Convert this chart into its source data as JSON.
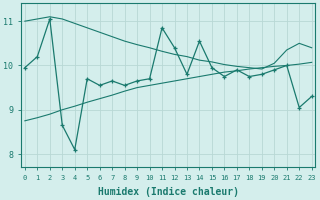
{
  "x": [
    0,
    1,
    2,
    3,
    4,
    5,
    6,
    7,
    8,
    9,
    10,
    11,
    12,
    13,
    14,
    15,
    16,
    17,
    18,
    19,
    20,
    21,
    22,
    23
  ],
  "main_line": [
    9.95,
    10.2,
    11.05,
    8.65,
    8.1,
    9.7,
    9.55,
    9.65,
    9.55,
    9.65,
    9.7,
    10.85,
    10.4,
    9.8,
    10.55,
    9.95,
    9.75,
    9.9,
    9.75,
    9.8,
    9.9,
    10.0,
    9.05,
    9.3
  ],
  "upper_line": [
    11.0,
    11.05,
    11.1,
    11.05,
    10.95,
    10.85,
    10.75,
    10.65,
    10.55,
    10.47,
    10.4,
    10.32,
    10.25,
    10.2,
    10.12,
    10.08,
    10.02,
    9.98,
    9.95,
    9.92,
    10.05,
    10.35,
    10.5,
    10.4
  ],
  "lower_line": [
    8.75,
    8.82,
    8.9,
    9.0,
    9.08,
    9.17,
    9.25,
    9.33,
    9.42,
    9.5,
    9.55,
    9.6,
    9.65,
    9.7,
    9.75,
    9.8,
    9.85,
    9.88,
    9.92,
    9.95,
    9.98,
    10.0,
    10.03,
    10.07
  ],
  "bg_color": "#d4eeec",
  "grid_color": "#b8d8d5",
  "line_color": "#1a7a6e",
  "ylim": [
    7.7,
    11.4
  ],
  "xlim": [
    -0.3,
    23.3
  ],
  "yticks": [
    8,
    9,
    10,
    11
  ],
  "xticks": [
    0,
    1,
    2,
    3,
    4,
    5,
    6,
    7,
    8,
    9,
    10,
    11,
    12,
    13,
    14,
    15,
    16,
    17,
    18,
    19,
    20,
    21,
    22,
    23
  ],
  "xlabel": "Humidex (Indice chaleur)",
  "xlabel_fontsize": 7.0
}
